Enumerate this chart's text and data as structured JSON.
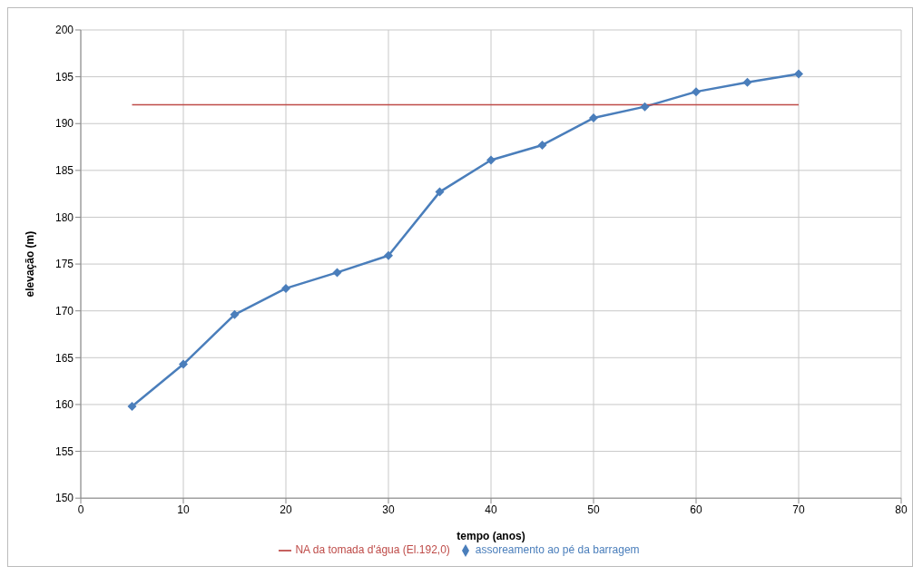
{
  "chart_data": {
    "type": "line",
    "xlabel": "tempo (anos)",
    "ylabel": "elevação (m)",
    "xlim": [
      0,
      80
    ],
    "xticks": [
      0,
      10,
      20,
      30,
      40,
      50,
      60,
      70,
      80
    ],
    "ylim": [
      150,
      200
    ],
    "yticks": [
      150,
      155,
      160,
      165,
      170,
      175,
      180,
      185,
      190,
      195,
      200
    ],
    "grid": true,
    "legend": "bottom",
    "line_style": "solid",
    "series": [
      {
        "name": "assoreamento ao pé da barragem",
        "color": "#4a7ebb",
        "marker": "diamond",
        "x": [
          5,
          10,
          15,
          20,
          25,
          30,
          35,
          40,
          45,
          50,
          55,
          60,
          65,
          70
        ],
        "values": [
          159.8,
          164.3,
          169.6,
          172.4,
          174.1,
          175.9,
          182.7,
          186.1,
          187.7,
          190.6,
          191.8,
          193.4,
          194.4,
          195.3
        ]
      },
      {
        "name": "NA da tomada d'água (El.192,0)",
        "color": "#be4b48",
        "marker": "none",
        "x": [
          5,
          70
        ],
        "values": [
          192,
          192
        ]
      }
    ]
  }
}
